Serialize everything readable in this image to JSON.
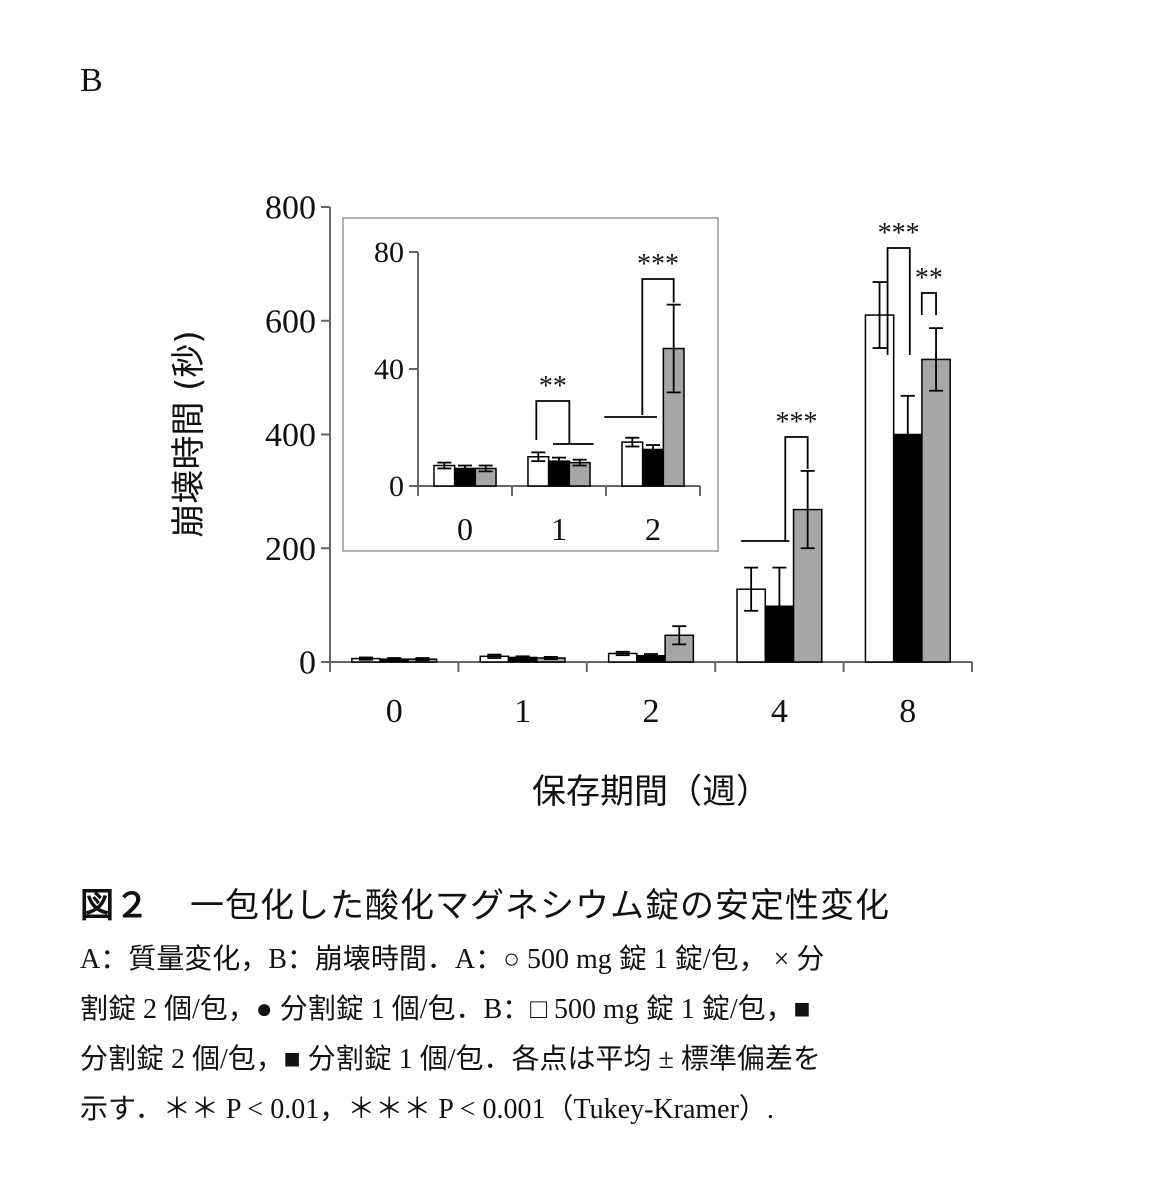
{
  "panel_label": "B",
  "chart_data": [
    {
      "type": "bar",
      "categories": [
        "0",
        "1",
        "2",
        "4",
        "8"
      ],
      "series": [
        {
          "values": [
            6,
            10,
            15,
            128,
            610
          ],
          "errors": [
            2,
            3,
            3,
            38,
            58
          ],
          "color": "#ffffff"
        },
        {
          "values": [
            5,
            8,
            11,
            98,
            400
          ],
          "errors": [
            2,
            2,
            3,
            68,
            68
          ],
          "color": "#000000"
        },
        {
          "values": [
            5,
            7,
            47,
            268,
            532
          ],
          "errors": [
            2,
            2,
            16,
            68,
            55
          ],
          "color": "#a6a6a6"
        }
      ],
      "ylim": [
        0,
        800
      ],
      "yticks": [
        "0",
        "200",
        "400",
        "600",
        "800"
      ],
      "xlabel": "保存期間（週）",
      "ylabel": "崩壊時間 (秒)",
      "annotations": [
        "***",
        "***",
        "**"
      ]
    },
    {
      "type": "bar",
      "categories": [
        "0",
        "1",
        "2"
      ],
      "series": [
        {
          "values": [
            7,
            10,
            15
          ],
          "errors": [
            1,
            1.5,
            1.5
          ],
          "color": "#ffffff"
        },
        {
          "values": [
            6,
            8.5,
            12.5
          ],
          "errors": [
            1,
            1.2,
            1.5
          ],
          "color": "#000000"
        },
        {
          "values": [
            6,
            8,
            47
          ],
          "errors": [
            1,
            1,
            15
          ],
          "color": "#a6a6a6"
        }
      ],
      "ylim": [
        0,
        80
      ],
      "yticks": [
        "0",
        "40",
        "80"
      ],
      "annotations": [
        "**",
        "***"
      ]
    }
  ],
  "caption": {
    "title_num": "図２",
    "title_text": "一包化した酸化マグネシウム錠の安定性変化",
    "lines": [
      "A：質量変化，B：崩壊時間．A：○ 500 mg 錠 1 錠/包，  × 分",
      "割錠 2 個/包，● 分割錠 1 個/包．B：□ 500 mg 錠 1 錠/包，■",
      "分割錠 2 個/包，■ 分割錠 1 個/包．各点は平均 ± 標準偏差を",
      "示す．＊＊ P < 0.01，＊＊＊ P < 0.001（Tukey-Kramer）."
    ]
  }
}
